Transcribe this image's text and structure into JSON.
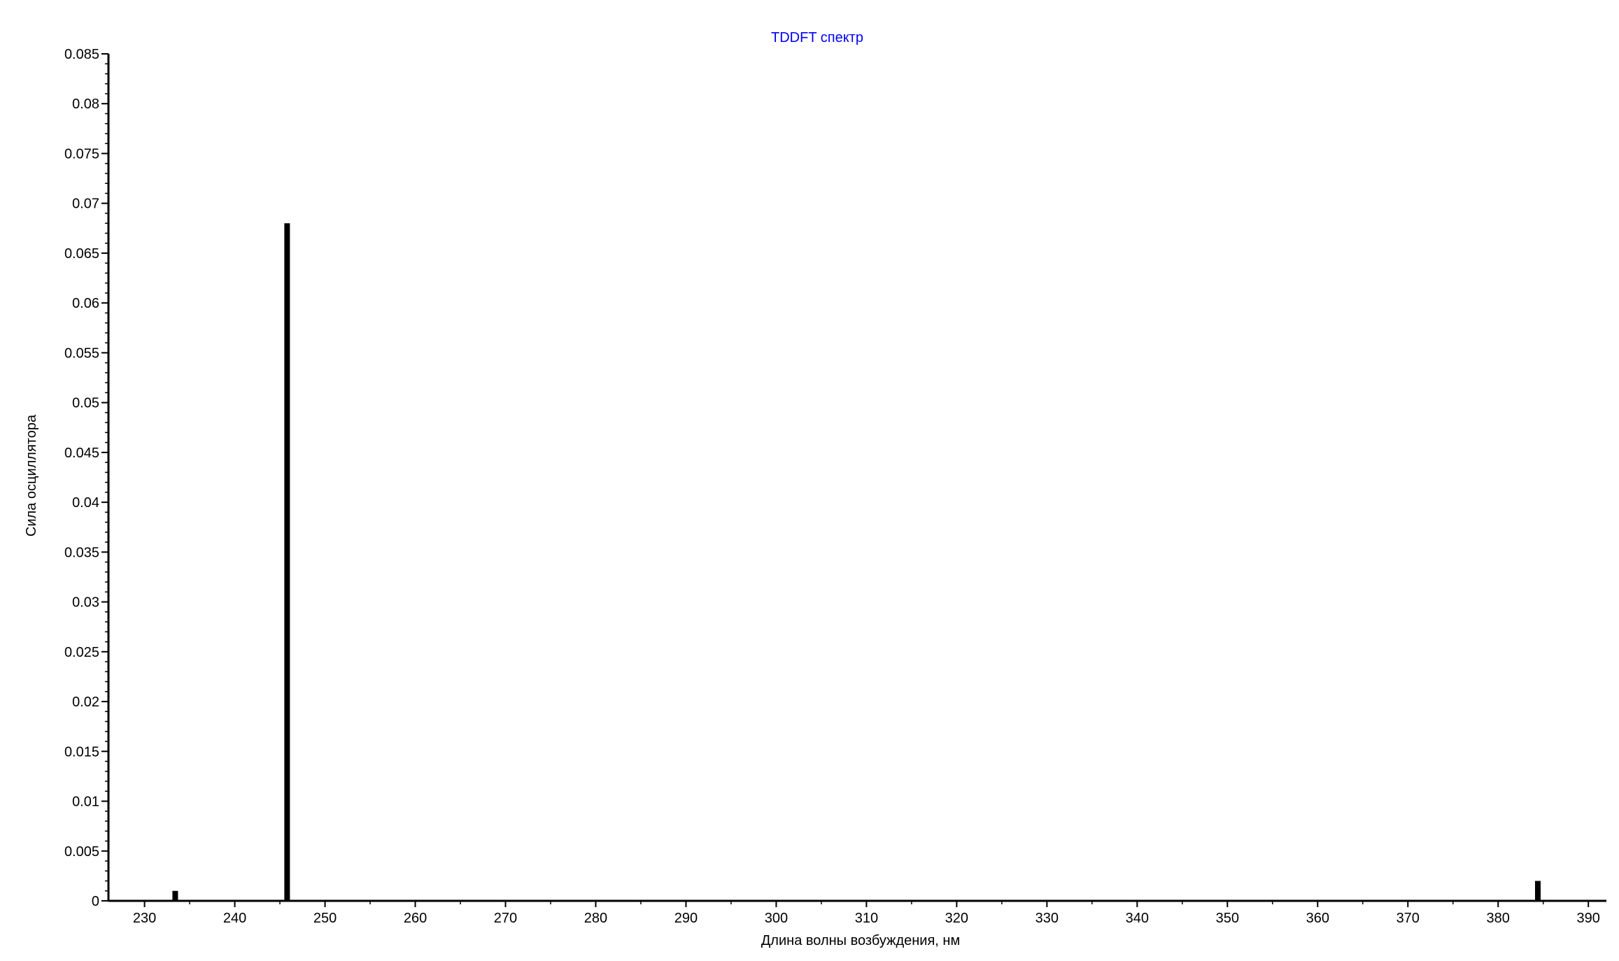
{
  "chart_data": {
    "type": "bar",
    "title": "TDDFT спектр",
    "xlabel": "Длина волны возбуждения, нм",
    "ylabel": "Сила осциллятора",
    "xlim": [
      226,
      392
    ],
    "ylim": [
      0,
      0.085
    ],
    "x_ticks": [
      "230",
      "240",
      "250",
      "260",
      "270",
      "280",
      "290",
      "300",
      "310",
      "320",
      "330",
      "340",
      "350",
      "360",
      "370",
      "380",
      "390"
    ],
    "y_ticks": [
      "0",
      "0.005",
      "0.01",
      "0.015",
      "0.02",
      "0.025",
      "0.03",
      "0.035",
      "0.04",
      "0.045",
      "0.05",
      "0.055",
      "0.06",
      "0.065",
      "0.07",
      "0.075",
      "0.08",
      "0.085"
    ],
    "series": [
      {
        "x": [
          233.4,
          245.8,
          384.4
        ],
        "values": [
          0.001,
          0.068,
          0.002
        ]
      }
    ],
    "grid": false,
    "colors": {
      "title": "#0000ff",
      "bars": "#000000",
      "axes": "#000000",
      "text": "#000000"
    }
  }
}
